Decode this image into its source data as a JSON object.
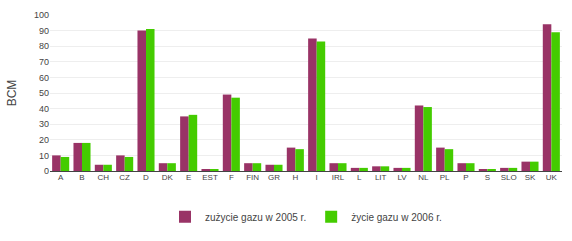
{
  "chart_data": {
    "type": "bar",
    "ylabel": "BCM",
    "categories": [
      "A",
      "B",
      "CH",
      "CZ",
      "D",
      "DK",
      "E",
      "EST",
      "F",
      "FIN",
      "GR",
      "H",
      "I",
      "IRL",
      "L",
      "LIT",
      "LV",
      "NL",
      "PL",
      "P",
      "S",
      "SLO",
      "SK",
      "UK"
    ],
    "series": [
      {
        "name": "zużycie gazu w 2005 r.",
        "color": "#993366",
        "values": [
          10,
          18,
          4,
          10,
          90,
          5,
          35,
          1,
          49,
          5,
          4,
          15,
          85,
          5,
          2,
          3,
          2,
          42,
          15,
          5,
          1,
          2,
          6,
          94
        ]
      },
      {
        "name": "życie gazu w 2006 r.",
        "color": "#44cc00",
        "values": [
          9,
          18,
          4,
          9,
          91,
          5,
          36,
          1,
          47,
          5,
          4,
          14,
          83,
          5,
          2,
          3,
          2,
          41,
          14,
          5,
          1,
          2,
          6,
          89
        ]
      }
    ],
    "ylim": [
      0,
      100
    ],
    "yticks": [
      0,
      10,
      20,
      30,
      40,
      50,
      60,
      70,
      80,
      90,
      100
    ],
    "grid": true,
    "legend": "bottom"
  }
}
